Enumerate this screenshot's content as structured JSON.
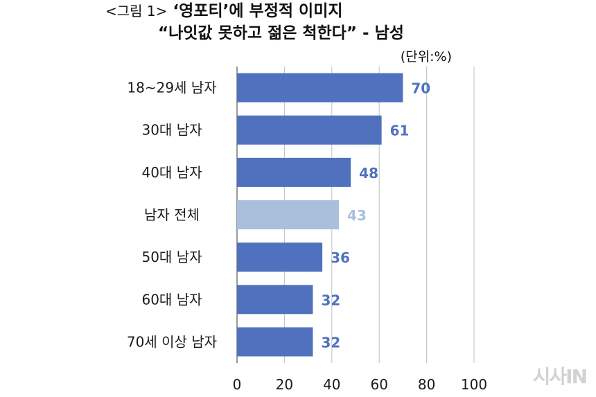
{
  "title": {
    "prefix": "<그림 1>",
    "line1": "‘영포티’에 부정적 이미지",
    "line2": "“나잇값 못하고 젊은 척한다” - 남성"
  },
  "unit": "(단위:%)",
  "watermark": "시사IN",
  "chart_data": {
    "type": "bar",
    "orientation": "horizontal",
    "categories": [
      "18~29세 남자",
      "30대 남자",
      "40대 남자",
      "남자 전체",
      "50대 남자",
      "60대 남자",
      "70세 이상 남자"
    ],
    "values": [
      70,
      61,
      48,
      43,
      36,
      32,
      32
    ],
    "xlim": [
      0,
      100
    ],
    "xticks": [
      0,
      20,
      40,
      60,
      80,
      100
    ],
    "grid": true,
    "colors": {
      "default": "#5072be",
      "highlight": "#aabfdb",
      "highlight_category": "남자 전체",
      "grid": "#bfbfbf"
    }
  }
}
